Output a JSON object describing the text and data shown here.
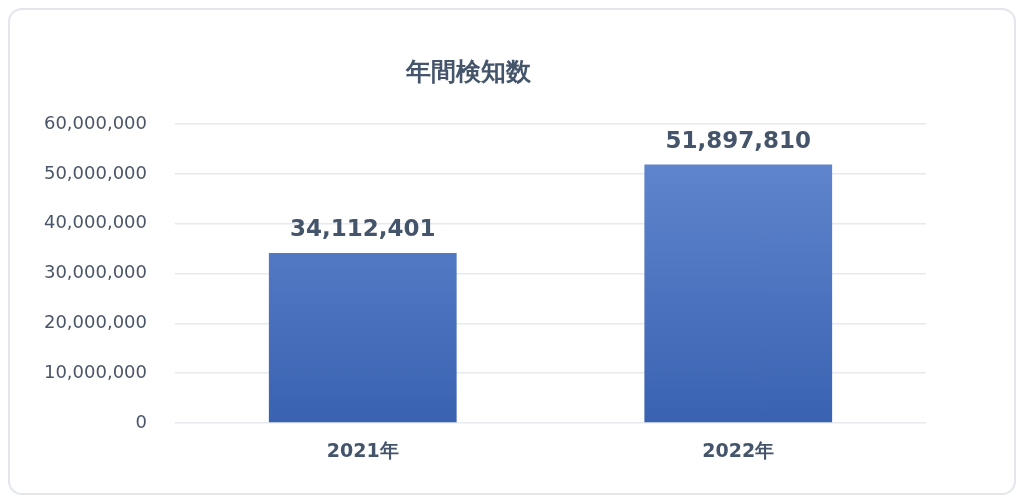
{
  "chart_data": {
    "type": "bar",
    "title": "年間検知数",
    "categories": [
      "2021年",
      "2022年"
    ],
    "values": [
      34112401,
      51897810
    ],
    "value_labels": [
      "34,112,401",
      "51,897,810"
    ],
    "color": "#3f6dc5",
    "ylim": [
      0,
      60000000
    ],
    "yticks": [
      0,
      {
        "value": 10000000,
        "label": "10,000,000"
      },
      {
        "value": 20000000,
        "label": "20,000,000"
      },
      {
        "value": 30000000,
        "label": "30,000,000"
      },
      {
        "value": 40000000,
        "label": "40,000,000"
      },
      {
        "value": 50000000,
        "label": "50,000,000"
      },
      {
        "value": 60000000,
        "label": "60,000,000"
      }
    ],
    "grid": "y"
  }
}
